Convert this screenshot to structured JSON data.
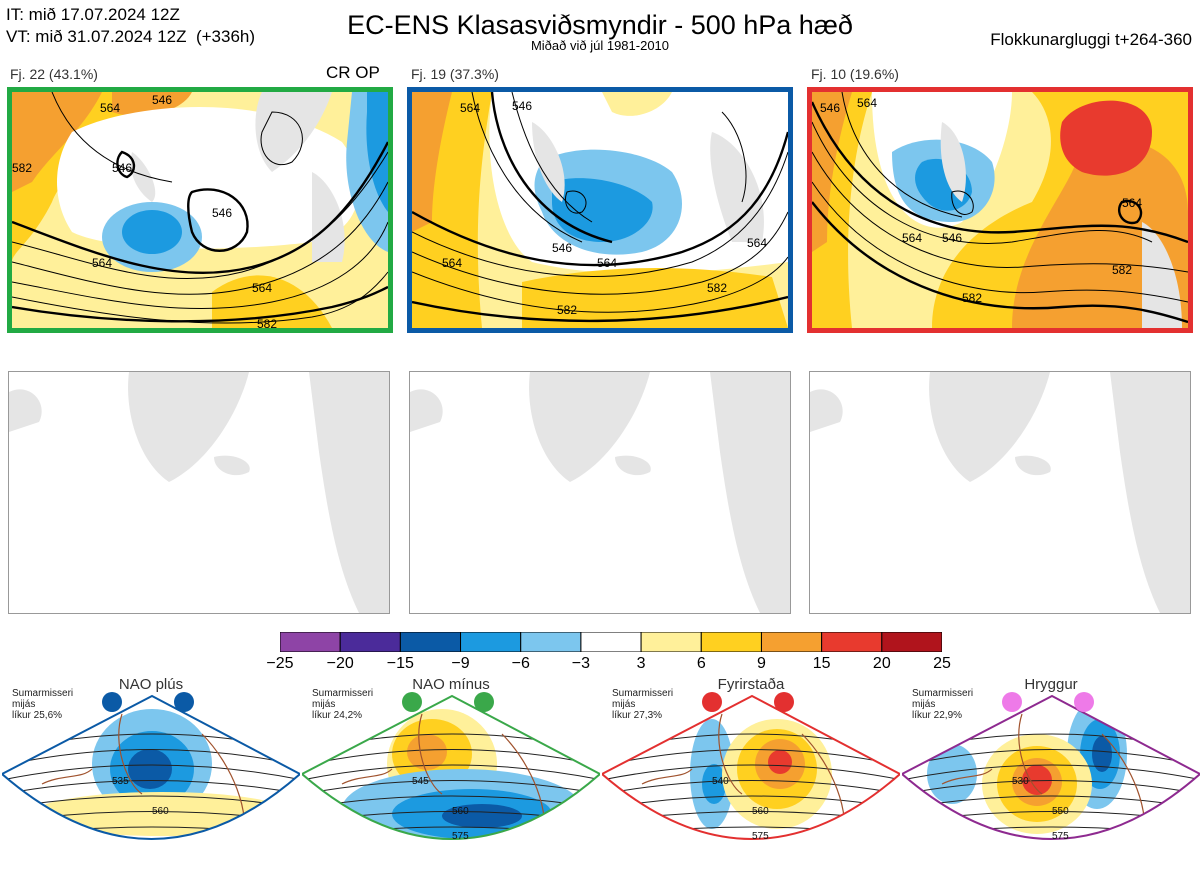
{
  "header": {
    "it_line": "IT: mið 17.07.2024 12Z",
    "vt_line": "VT: mið 31.07.2024 12Z  (+336h)",
    "title": "EC-ENS Klasasviðsmyndir - 500 hPa hæð",
    "subtitle": "Miðað við júl 1981-2010",
    "window_label": "Flokkunargluggi t+264-360"
  },
  "clusters": [
    {
      "label": "Fj. 22 (43.1%)",
      "border_color": "#22aa44",
      "extra_label": "CR OP",
      "contour_labels": [
        "564",
        "546",
        "546",
        "546",
        "564",
        "564",
        "582",
        "582"
      ]
    },
    {
      "label": "Fj. 19 (37.3%)",
      "border_color": "#0b5aa6",
      "contour_labels": [
        "564",
        "546",
        "564",
        "546",
        "564",
        "564",
        "582",
        "582"
      ]
    },
    {
      "label": "Fj. 10 (19.6%)",
      "border_color": "#e33030",
      "contour_labels": [
        "546",
        "564",
        "546",
        "564",
        "564",
        "582",
        "582"
      ]
    }
  ],
  "colorbar": {
    "ticks": [
      "−25",
      "−20",
      "−15",
      "−9",
      "−6",
      "−3",
      "3",
      "6",
      "9",
      "15",
      "20",
      "25"
    ],
    "colors": [
      "#8e44a6",
      "#4b2b9a",
      "#0b5aa6",
      "#1c9ae0",
      "#7cc6ee",
      "#ffffff",
      "#fff09a",
      "#ffd020",
      "#f5a030",
      "#e83a2e",
      "#b0141c"
    ]
  },
  "regimes": [
    {
      "name": "NAO plús",
      "note_lines": [
        "Sumarmisseri",
        "mijás",
        "líkur 25,6%"
      ],
      "outline_color": "#0b5aa6",
      "dot_color": "#0b5aa6",
      "contour_labels": [
        "535",
        "560"
      ]
    },
    {
      "name": "NAO mínus",
      "note_lines": [
        "Sumarmisseri",
        "mijás",
        "líkur 24,2%"
      ],
      "outline_color": "#3aa84a",
      "dot_color": "#3aa84a",
      "contour_labels": [
        "545",
        "560",
        "575"
      ]
    },
    {
      "name": "Fyrirstaða",
      "note_lines": [
        "Sumarmisseri",
        "mijás",
        "líkur 27,3%"
      ],
      "outline_color": "#e33030",
      "dot_color": "#e33030",
      "contour_labels": [
        "540",
        "560",
        "575"
      ]
    },
    {
      "name": "Hryggur",
      "note_lines": [
        "Sumarmisseri",
        "mijás",
        "líkur 22,9%"
      ],
      "outline_color": "#8e2a90",
      "dot_color": "#ee7ae8",
      "contour_labels": [
        "530",
        "550",
        "575"
      ]
    }
  ]
}
